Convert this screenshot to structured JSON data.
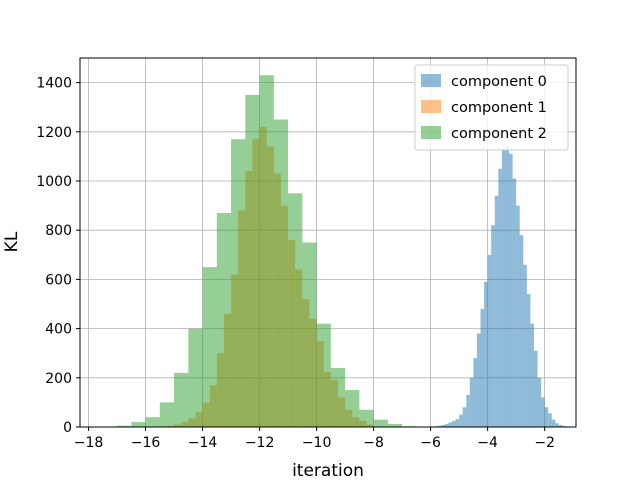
{
  "chart_data": {
    "type": "bar",
    "title": "",
    "xlabel": "iteration",
    "ylabel": "KL",
    "xlim": [
      -18.3,
      -0.9
    ],
    "ylim": [
      0,
      1500
    ],
    "xticks": [
      -18,
      -16,
      -14,
      -12,
      -10,
      -8,
      -6,
      -4,
      -2
    ],
    "yticks": [
      0,
      200,
      400,
      600,
      800,
      1000,
      1200,
      1400
    ],
    "grid": true,
    "legend_position": "top-right",
    "series": [
      {
        "name": "component 0",
        "color": "#1f77b4",
        "opacity": 0.5,
        "bin_width": 0.125,
        "bins_start": [
          -6.0,
          -5.875,
          -5.75,
          -5.625,
          -5.5,
          -5.375,
          -5.25,
          -5.125,
          -5.0,
          -4.875,
          -4.75,
          -4.625,
          -4.5,
          -4.375,
          -4.25,
          -4.125,
          -4.0,
          -3.875,
          -3.75,
          -3.625,
          -3.5,
          -3.375,
          -3.25,
          -3.125,
          -3.0,
          -2.875,
          -2.75,
          -2.625,
          -2.5,
          -2.375,
          -2.25,
          -2.125,
          -2.0,
          -1.875,
          -1.75,
          -1.625,
          -1.5,
          -1.375,
          -1.25
        ],
        "counts": [
          2,
          3,
          5,
          8,
          12,
          18,
          25,
          32,
          50,
          80,
          130,
          200,
          280,
          380,
          480,
          590,
          700,
          820,
          940,
          1050,
          1130,
          1140,
          1110,
          1010,
          900,
          780,
          660,
          540,
          420,
          310,
          200,
          120,
          80,
          55,
          30,
          15,
          8,
          4,
          2
        ]
      },
      {
        "name": "component 1",
        "color": "#ff7f0e",
        "opacity": 0.5,
        "bin_width": 0.25,
        "bins_start": [
          -15.5,
          -15.25,
          -15.0,
          -14.75,
          -14.5,
          -14.25,
          -14.0,
          -13.75,
          -13.5,
          -13.25,
          -13.0,
          -12.75,
          -12.5,
          -12.25,
          -12.0,
          -11.75,
          -11.5,
          -11.25,
          -11.0,
          -10.75,
          -10.5,
          -10.25,
          -10.0,
          -9.75,
          -9.5,
          -9.25,
          -9.0,
          -8.75,
          -8.5,
          -8.25
        ],
        "counts": [
          2,
          5,
          10,
          20,
          35,
          60,
          100,
          170,
          300,
          460,
          620,
          880,
          1040,
          1170,
          1220,
          1140,
          1030,
          900,
          760,
          640,
          520,
          440,
          350,
          225,
          190,
          120,
          70,
          40,
          25,
          10
        ]
      },
      {
        "name": "component 2",
        "color": "#2ca02c",
        "opacity": 0.5,
        "bin_width": 0.5,
        "bins_start": [
          -17.0,
          -16.5,
          -16.0,
          -15.5,
          -15.0,
          -14.5,
          -14.0,
          -13.5,
          -13.0,
          -12.5,
          -12.0,
          -11.5,
          -11.0,
          -10.5,
          -10.0,
          -9.5,
          -9.0,
          -8.5,
          -8.0,
          -7.5,
          -7.0
        ],
        "counts": [
          5,
          20,
          40,
          100,
          220,
          400,
          650,
          870,
          1170,
          1350,
          1430,
          1250,
          950,
          750,
          420,
          240,
          150,
          70,
          30,
          12,
          3
        ]
      }
    ]
  }
}
